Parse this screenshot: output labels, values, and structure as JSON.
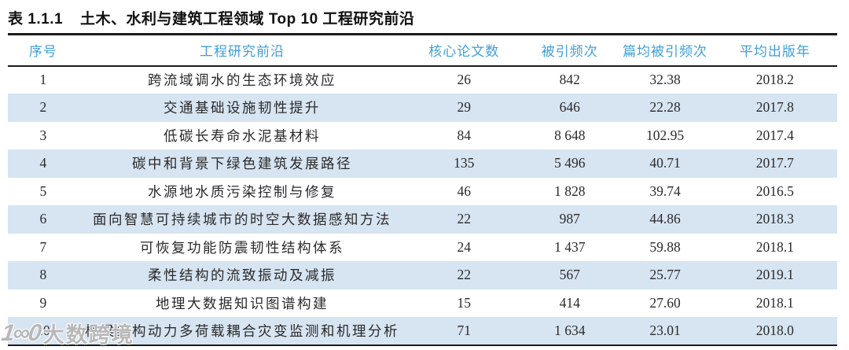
{
  "title": {
    "label": "表 1.1.1",
    "text": "土木、水利与建筑工程领域 Top 10 工程研究前沿"
  },
  "table": {
    "columns": [
      "序号",
      "工程研究前沿",
      "核心论文数",
      "被引频次",
      "篇均被引频次",
      "平均出版年"
    ],
    "rows": [
      [
        "1",
        "跨流域调水的生态环境效应",
        "26",
        "842",
        "32.38",
        "2018.2"
      ],
      [
        "2",
        "交通基础设施韧性提升",
        "29",
        "646",
        "22.28",
        "2017.8"
      ],
      [
        "3",
        "低碳长寿命水泥基材料",
        "84",
        "8 648",
        "102.95",
        "2017.4"
      ],
      [
        "4",
        "碳中和背景下绿色建筑发展路径",
        "135",
        "5 496",
        "40.71",
        "2017.7"
      ],
      [
        "5",
        "水源地水质污染控制与修复",
        "46",
        "1 828",
        "39.74",
        "2016.5"
      ],
      [
        "6",
        "面向智慧可持续城市的时空大数据感知方法",
        "22",
        "987",
        "44.86",
        "2018.3"
      ],
      [
        "7",
        "可恢复功能防震韧性结构体系",
        "24",
        "1 437",
        "59.88",
        "2018.1"
      ],
      [
        "8",
        "柔性结构的流致振动及减振",
        "22",
        "567",
        "25.77",
        "2019.1"
      ],
      [
        "9",
        "地理大数据知识图谱构建",
        "15",
        "414",
        "27.60",
        "2018.1"
      ],
      [
        "10",
        "桥梁结构动力多荷载耦合灾变监测和机理分析",
        "71",
        "1 634",
        "23.01",
        "2018.0"
      ]
    ]
  },
  "watermark": {
    "logo": "1∞0",
    "text": "大数跨境"
  },
  "colors": {
    "header_text": "#3f9fd8",
    "band_row": "#d7e4f2",
    "rule": "#1b1b1b",
    "body_text": "#2a2a2a"
  }
}
